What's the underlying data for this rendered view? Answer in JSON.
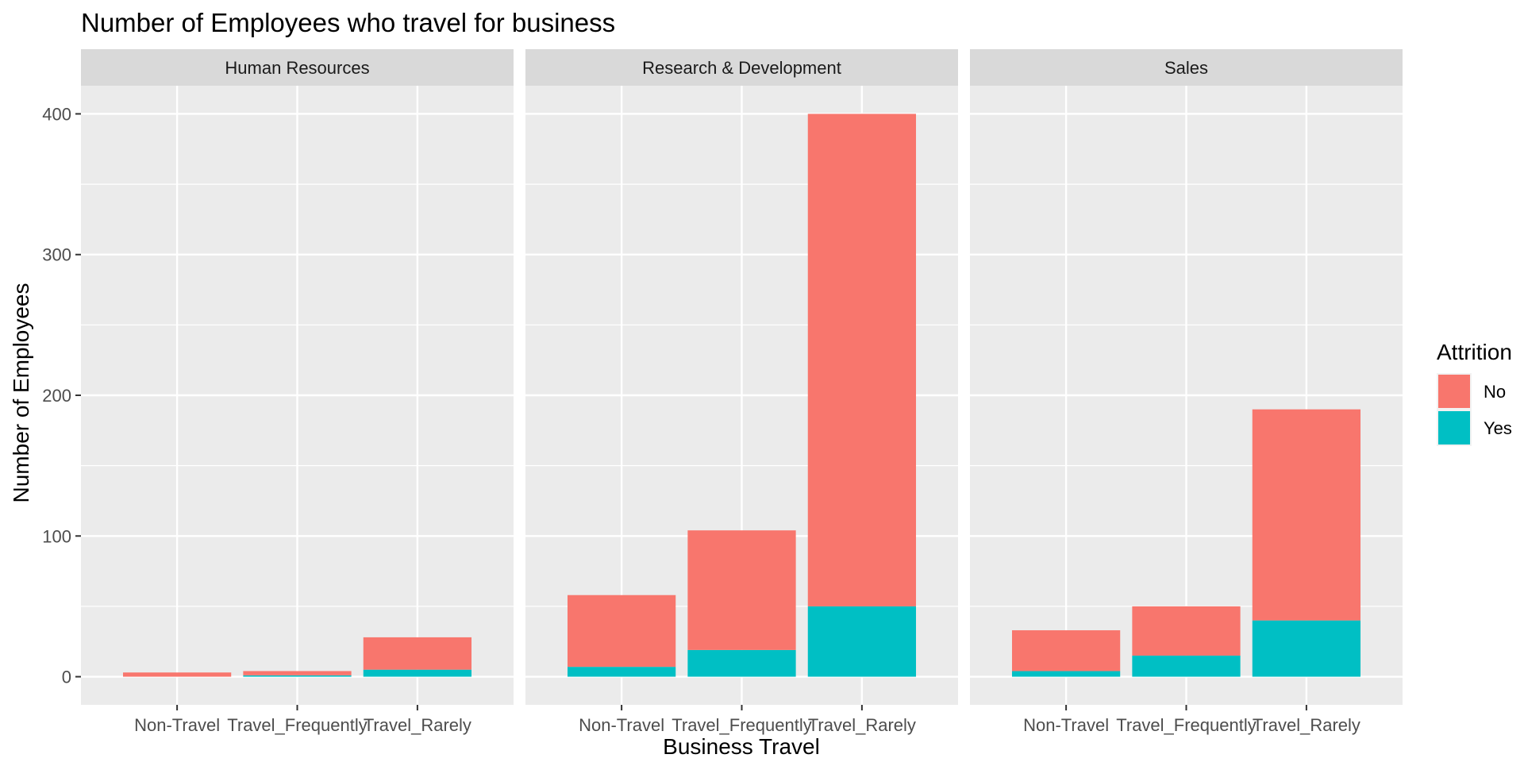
{
  "chart_data": {
    "type": "bar",
    "stacked": true,
    "title": "Number of Employees who travel for business",
    "xlabel": "Business Travel",
    "ylabel": "Number of Employees",
    "ylim": [
      -20,
      420
    ],
    "yticks": [
      0,
      100,
      200,
      300,
      400
    ],
    "grid": true,
    "facets": [
      "Human Resources",
      "Research & Development",
      "Sales"
    ],
    "categories": [
      "Non-Travel",
      "Travel_Frequently",
      "Travel_Rarely"
    ],
    "legend": {
      "title": "Attrition",
      "position": "right",
      "entries": [
        {
          "label": "No",
          "color": "#F8766D"
        },
        {
          "label": "Yes",
          "color": "#00BFC4"
        }
      ]
    },
    "series": [
      {
        "name": "No",
        "color": "#F8766D",
        "values": [
          [
            3,
            3,
            23
          ],
          [
            51,
            85,
            350
          ],
          [
            29,
            35,
            150
          ]
        ]
      },
      {
        "name": "Yes",
        "color": "#00BFC4",
        "values": [
          [
            0,
            1,
            5
          ],
          [
            7,
            19,
            50
          ],
          [
            4,
            15,
            40
          ]
        ]
      }
    ]
  }
}
